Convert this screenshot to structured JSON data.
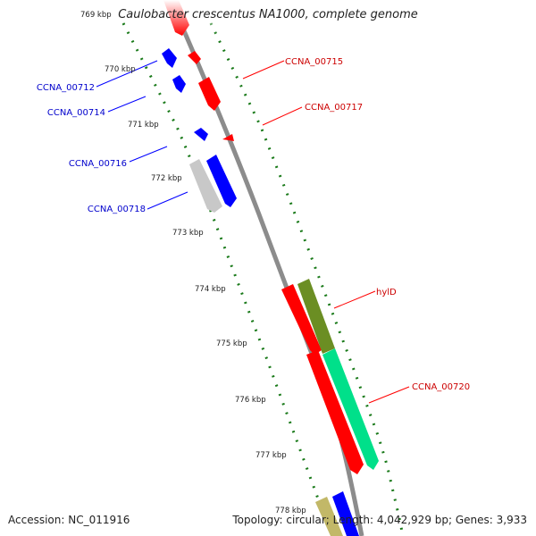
{
  "title": "Caulobacter crescentus NA1000, complete genome",
  "footer": {
    "accession": "Accession: NC_011916",
    "summary": "Topology: circular; Length: 4,042,929 bp; Genes: 3,933"
  },
  "colors": {
    "backbone": "#8c8c8c",
    "forward_strand": "#ff0000",
    "reverse_strand": "#0000ff",
    "ticks": "#1a7a1a",
    "hylD": "#6b8e23",
    "CCNA_00720": "#00e08a",
    "gray_gene": "#c8c8c8",
    "tan_gene": "#c2b868"
  },
  "scale_labels": [
    "769 kbp",
    "770 kbp",
    "771 kbp",
    "772 kbp",
    "773 kbp",
    "774 kbp",
    "775 kbp",
    "776 kbp",
    "777 kbp",
    "778 kbp"
  ],
  "gene_labels": {
    "left": [
      "CCNA_00712",
      "CCNA_00714",
      "CCNA_00716",
      "CCNA_00718"
    ],
    "right": [
      "CCNA_00715",
      "CCNA_00717",
      "hylD",
      "CCNA_00720"
    ]
  }
}
